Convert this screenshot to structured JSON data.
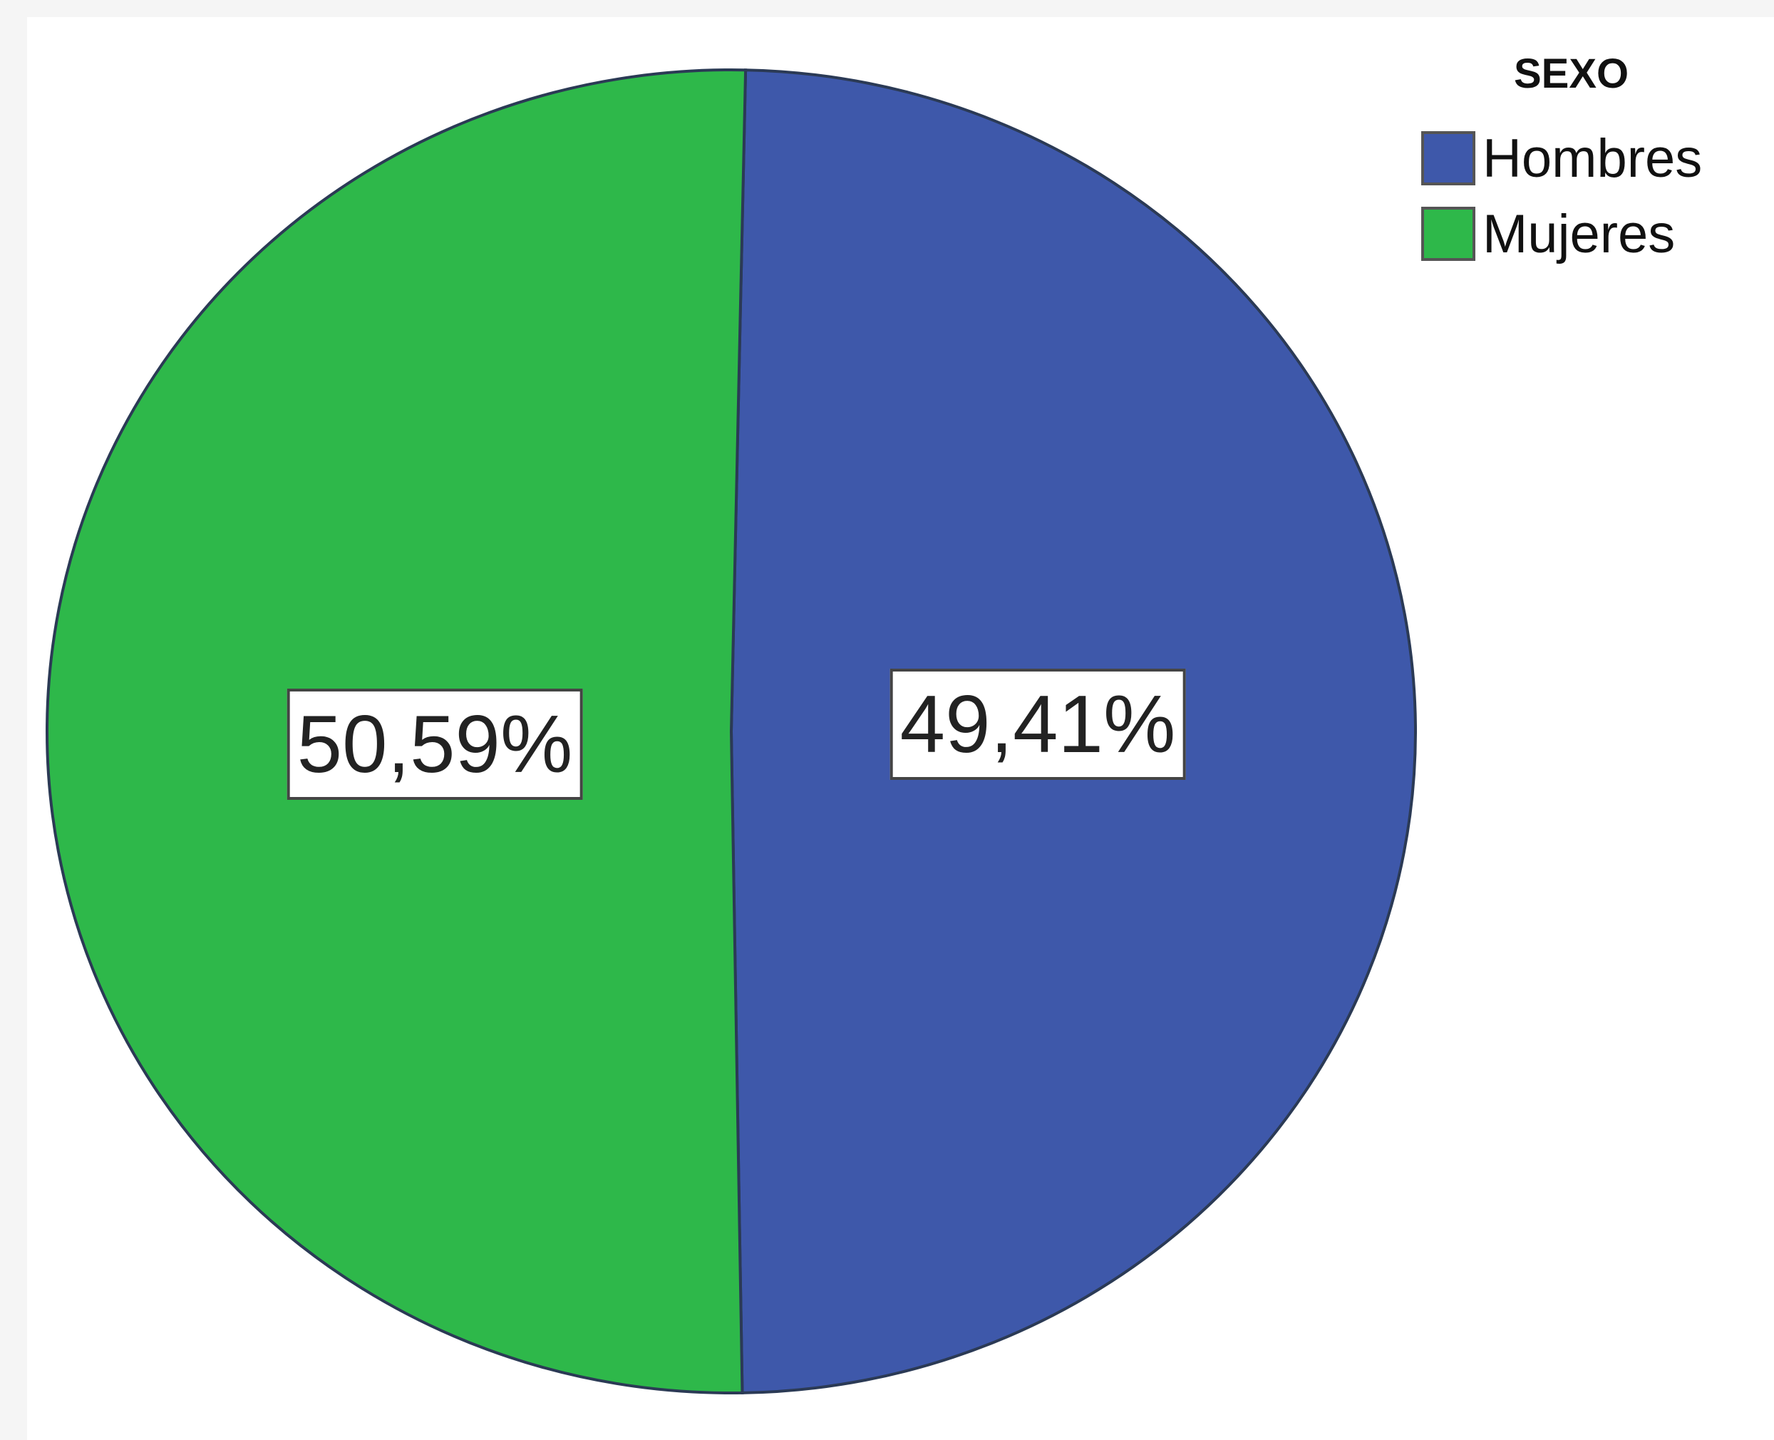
{
  "chart_data": {
    "type": "pie",
    "legend_title": "SEXO",
    "legend_position": "top-right",
    "slices": [
      {
        "label": "Hombres",
        "value": 49.41,
        "display": "49,41%",
        "color": "#3e58aa"
      },
      {
        "label": "Mujeres",
        "value": 50.59,
        "display": "50,59%",
        "color": "#2eb84a"
      }
    ]
  }
}
